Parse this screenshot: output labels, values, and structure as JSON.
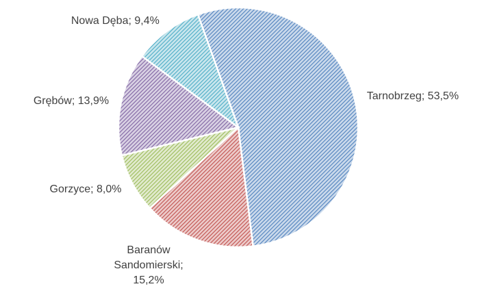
{
  "chart_data": {
    "type": "pie",
    "categories": [
      "Tarnobrzeg",
      "Baranów Sandomierski",
      "Gorzyce",
      "Grębów",
      "Nowa Dęba"
    ],
    "values": [
      53.5,
      15.2,
      8.0,
      13.9,
      9.4
    ],
    "value_labels": [
      "Tarnobrzeg; 53,5%",
      "Baranów Sandomierski; 15,2%",
      "Gorzyce; 8,0%",
      "Grębów; 13,9%",
      "Nowa Dęba; 9,4%"
    ],
    "colors": [
      "#4f81bd",
      "#c0504d",
      "#9bbb59",
      "#8064a2",
      "#4bacc6"
    ]
  }
}
